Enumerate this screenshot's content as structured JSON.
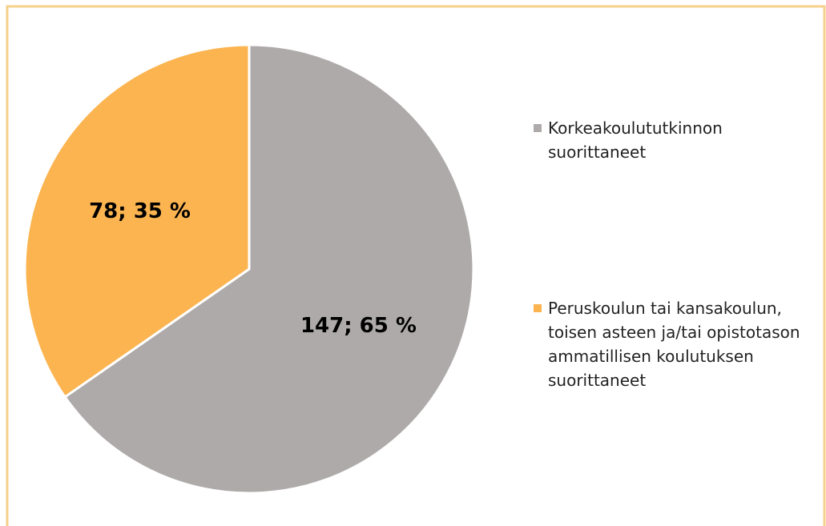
{
  "chart_data": {
    "type": "pie",
    "categories": [
      "Korkeakoulututkinnon suorittaneet",
      "Peruskoulun tai kansakoulun, toisen asteen ja/tai opistotason ammatillisen koulutuksen suorittaneet"
    ],
    "values": [
      147,
      78
    ],
    "value_labels": [
      "147; 65 %",
      "78; 35 %"
    ],
    "colors": [
      "#aeaaaa",
      "#fbb450"
    ],
    "legend": "right"
  }
}
